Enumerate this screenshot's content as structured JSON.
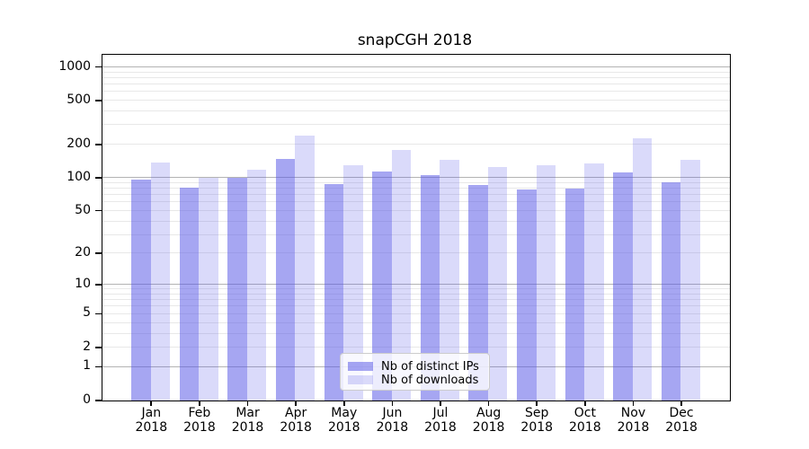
{
  "chart_data": {
    "type": "bar",
    "title": "snapCGH 2018",
    "categories": [
      "Jan",
      "Feb",
      "Mar",
      "Apr",
      "May",
      "Jun",
      "Jul",
      "Aug",
      "Sep",
      "Oct",
      "Nov",
      "Dec"
    ],
    "year": "2018",
    "series": [
      {
        "name": "Nb of distinct IPs",
        "color": "rgba(85,85,230,0.52)",
        "values": [
          97,
          81,
          100,
          148,
          88,
          114,
          107,
          87,
          79,
          80,
          113,
          92
        ]
      },
      {
        "name": "Nb of downloads",
        "color": "rgba(85,85,230,0.22)",
        "values": [
          137,
          101,
          119,
          240,
          130,
          180,
          145,
          126,
          130,
          136,
          227,
          146
        ]
      }
    ],
    "yticks": [
      0,
      1,
      2,
      5,
      10,
      20,
      50,
      100,
      200,
      500,
      1000
    ],
    "yscale": "log10(value+1)",
    "ylim": [
      0,
      1272
    ],
    "xlabel": "",
    "ylabel": "",
    "grid": "on",
    "legend_position": "lower center",
    "colors": {
      "major_grid": "#b3b3b3",
      "minor_grid": "#e8e8e8",
      "axis": "#000000",
      "text": "#000000"
    }
  }
}
